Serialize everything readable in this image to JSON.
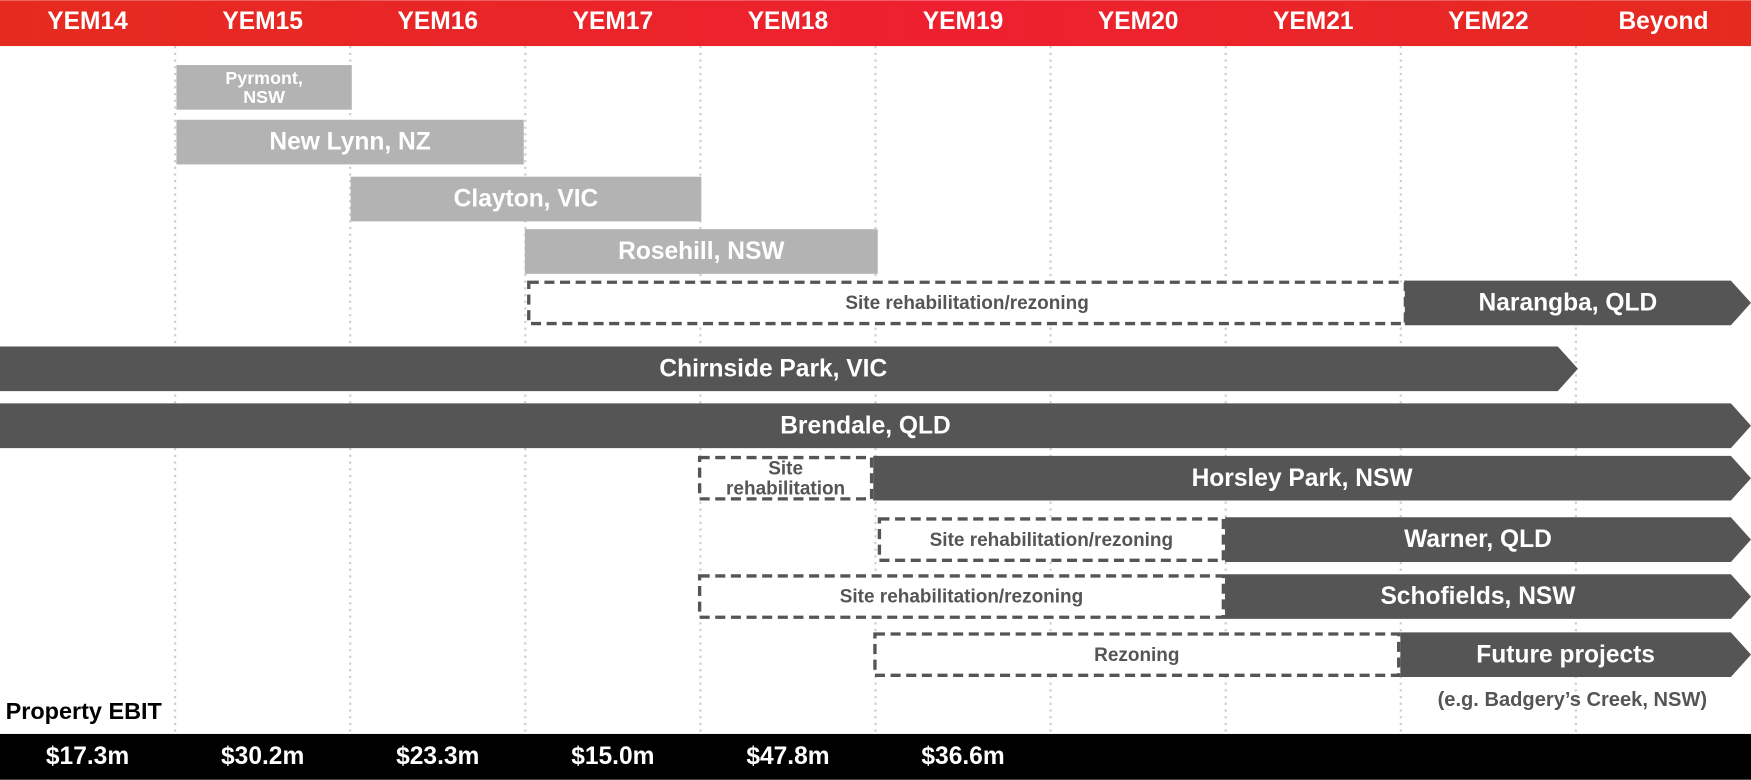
{
  "header": {
    "columns": [
      "YEM14",
      "YEM15",
      "YEM16",
      "YEM17",
      "YEM18",
      "YEM19",
      "YEM20",
      "YEM21",
      "YEM22",
      "Beyond"
    ]
  },
  "projects": [
    {
      "name": [
        "Pyrmont,",
        "NSW"
      ]
    },
    {
      "name": "New Lynn, NZ"
    },
    {
      "name": "Clayton, VIC"
    },
    {
      "name": "Rosehill, NSW"
    },
    {
      "phase": "Site rehabilitation/rezoning",
      "name": "Narangba, QLD"
    },
    {
      "name": "Chirnside Park, VIC"
    },
    {
      "name": "Brendale, QLD"
    },
    {
      "phase": [
        "Site",
        "rehabilitation"
      ],
      "name": "Horsley Park, NSW"
    },
    {
      "phase": "Site rehabilitation/rezoning",
      "name": "Warner, QLD"
    },
    {
      "phase": "Site rehabilitation/rezoning",
      "name": "Schofields, NSW"
    },
    {
      "phase": "Rezoning",
      "name": "Future projects",
      "note": "(e.g.  Badgery’s Creek, NSW)"
    }
  ],
  "ebit": {
    "title": "Property EBIT",
    "values": [
      "$17.3m",
      "$30.2m",
      "$23.3m",
      "$15.0m",
      "$47.8m",
      "$36.6m"
    ]
  }
}
